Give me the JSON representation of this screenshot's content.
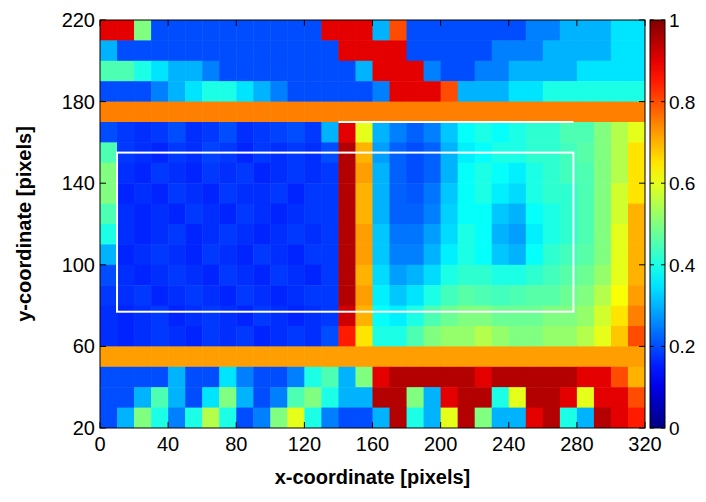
{
  "chart_data": {
    "type": "heatmap",
    "xlabel": "x-coordinate [pixels]",
    "ylabel": "y-coordinate [pixels]",
    "color": "jet",
    "xlim": [
      0,
      320
    ],
    "ylim": [
      20,
      220
    ],
    "xticks": [
      0,
      40,
      80,
      120,
      160,
      200,
      240,
      280,
      320
    ],
    "yticks": [
      20,
      60,
      100,
      140,
      180,
      220
    ],
    "zlim": [
      0,
      1
    ],
    "zticks": [
      0,
      0.2,
      0.4,
      0.6,
      0.8,
      1
    ],
    "x": [
      5,
      15,
      25,
      35,
      45,
      55,
      65,
      75,
      85,
      95,
      105,
      115,
      125,
      135,
      145,
      155,
      165,
      175,
      185,
      195,
      205,
      215,
      225,
      235,
      245,
      255,
      265,
      275,
      285,
      295,
      305,
      315
    ],
    "y": [
      215,
      205,
      195,
      185,
      175,
      165,
      155,
      145,
      135,
      125,
      115,
      105,
      95,
      85,
      75,
      65,
      55,
      45,
      35,
      25
    ],
    "z": [
      [
        0.9,
        0.9,
        0.5,
        0.2,
        0.2,
        0.2,
        0.2,
        0.2,
        0.2,
        0.2,
        0.2,
        0.2,
        0.2,
        0.9,
        0.9,
        0.9,
        0.3,
        0.8,
        0.2,
        0.2,
        0.2,
        0.2,
        0.2,
        0.2,
        0.2,
        0.25,
        0.25,
        0.3,
        0.3,
        0.3,
        0.35,
        0.35
      ],
      [
        0.3,
        0.2,
        0.2,
        0.2,
        0.2,
        0.2,
        0.2,
        0.2,
        0.2,
        0.2,
        0.2,
        0.2,
        0.2,
        0.2,
        0.9,
        0.9,
        0.9,
        0.9,
        0.2,
        0.2,
        0.2,
        0.2,
        0.2,
        0.25,
        0.25,
        0.25,
        0.3,
        0.3,
        0.3,
        0.3,
        0.35,
        0.35
      ],
      [
        0.45,
        0.45,
        0.4,
        0.35,
        0.3,
        0.3,
        0.25,
        0.2,
        0.2,
        0.2,
        0.2,
        0.2,
        0.2,
        0.2,
        0.2,
        0.3,
        0.9,
        0.9,
        0.9,
        0.25,
        0.2,
        0.2,
        0.25,
        0.25,
        0.3,
        0.3,
        0.3,
        0.3,
        0.35,
        0.35,
        0.35,
        0.35
      ],
      [
        0.2,
        0.2,
        0.2,
        0.25,
        0.3,
        0.35,
        0.4,
        0.4,
        0.35,
        0.3,
        0.25,
        0.2,
        0.2,
        0.2,
        0.2,
        0.2,
        0.25,
        0.9,
        0.9,
        0.9,
        0.8,
        0.3,
        0.3,
        0.3,
        0.35,
        0.35,
        0.4,
        0.4,
        0.4,
        0.4,
        0.4,
        0.4
      ],
      [
        0.75,
        0.75,
        0.75,
        0.75,
        0.75,
        0.75,
        0.75,
        0.75,
        0.75,
        0.75,
        0.75,
        0.75,
        0.75,
        0.75,
        0.75,
        0.75,
        0.75,
        0.75,
        0.75,
        0.75,
        0.75,
        0.75,
        0.75,
        0.75,
        0.75,
        0.75,
        0.75,
        0.75,
        0.75,
        0.75,
        0.75,
        0.75
      ],
      [
        0.2,
        0.18,
        0.17,
        0.18,
        0.2,
        0.17,
        0.18,
        0.2,
        0.17,
        0.18,
        0.19,
        0.2,
        0.18,
        0.3,
        0.9,
        0.6,
        0.3,
        0.25,
        0.22,
        0.25,
        0.32,
        0.38,
        0.4,
        0.38,
        0.4,
        0.42,
        0.42,
        0.45,
        0.45,
        0.5,
        0.55,
        0.6
      ],
      [
        0.45,
        0.18,
        0.17,
        0.16,
        0.18,
        0.17,
        0.19,
        0.18,
        0.16,
        0.18,
        0.17,
        0.18,
        0.17,
        0.2,
        0.95,
        0.7,
        0.28,
        0.22,
        0.2,
        0.22,
        0.3,
        0.36,
        0.38,
        0.4,
        0.4,
        0.42,
        0.42,
        0.44,
        0.46,
        0.5,
        0.55,
        0.65
      ],
      [
        0.5,
        0.17,
        0.16,
        0.18,
        0.17,
        0.16,
        0.18,
        0.17,
        0.18,
        0.16,
        0.17,
        0.18,
        0.17,
        0.18,
        0.95,
        0.72,
        0.3,
        0.22,
        0.2,
        0.22,
        0.3,
        0.38,
        0.4,
        0.38,
        0.36,
        0.4,
        0.42,
        0.44,
        0.45,
        0.5,
        0.55,
        0.65
      ],
      [
        0.5,
        0.16,
        0.17,
        0.16,
        0.18,
        0.17,
        0.16,
        0.18,
        0.17,
        0.17,
        0.18,
        0.16,
        0.18,
        0.18,
        0.95,
        0.7,
        0.3,
        0.22,
        0.21,
        0.24,
        0.32,
        0.38,
        0.4,
        0.36,
        0.34,
        0.4,
        0.42,
        0.42,
        0.45,
        0.5,
        0.58,
        0.65
      ],
      [
        0.45,
        0.17,
        0.16,
        0.17,
        0.16,
        0.18,
        0.17,
        0.16,
        0.18,
        0.17,
        0.16,
        0.17,
        0.18,
        0.18,
        0.95,
        0.7,
        0.3,
        0.22,
        0.22,
        0.25,
        0.33,
        0.38,
        0.38,
        0.32,
        0.3,
        0.38,
        0.4,
        0.42,
        0.45,
        0.5,
        0.58,
        0.7
      ],
      [
        0.4,
        0.17,
        0.16,
        0.17,
        0.18,
        0.16,
        0.17,
        0.18,
        0.17,
        0.16,
        0.17,
        0.18,
        0.17,
        0.18,
        0.95,
        0.72,
        0.32,
        0.24,
        0.24,
        0.28,
        0.34,
        0.4,
        0.38,
        0.3,
        0.28,
        0.36,
        0.4,
        0.42,
        0.45,
        0.5,
        0.6,
        0.7
      ],
      [
        0.3,
        0.16,
        0.17,
        0.18,
        0.17,
        0.16,
        0.18,
        0.17,
        0.16,
        0.18,
        0.17,
        0.16,
        0.18,
        0.18,
        0.95,
        0.72,
        0.32,
        0.25,
        0.25,
        0.3,
        0.36,
        0.4,
        0.38,
        0.32,
        0.3,
        0.38,
        0.42,
        0.44,
        0.46,
        0.5,
        0.6,
        0.7
      ],
      [
        0.2,
        0.17,
        0.16,
        0.17,
        0.18,
        0.17,
        0.16,
        0.18,
        0.17,
        0.16,
        0.18,
        0.17,
        0.16,
        0.18,
        0.95,
        0.7,
        0.34,
        0.28,
        0.3,
        0.34,
        0.4,
        0.42,
        0.42,
        0.4,
        0.4,
        0.42,
        0.44,
        0.46,
        0.48,
        0.52,
        0.6,
        0.7
      ],
      [
        0.18,
        0.17,
        0.18,
        0.16,
        0.17,
        0.18,
        0.17,
        0.16,
        0.18,
        0.17,
        0.16,
        0.17,
        0.18,
        0.18,
        0.95,
        0.72,
        0.36,
        0.32,
        0.35,
        0.4,
        0.44,
        0.46,
        0.45,
        0.44,
        0.45,
        0.46,
        0.46,
        0.48,
        0.5,
        0.55,
        0.62,
        0.72
      ],
      [
        0.17,
        0.16,
        0.17,
        0.18,
        0.16,
        0.17,
        0.18,
        0.17,
        0.16,
        0.18,
        0.17,
        0.16,
        0.17,
        0.18,
        0.92,
        0.7,
        0.38,
        0.36,
        0.4,
        0.45,
        0.48,
        0.5,
        0.5,
        0.48,
        0.48,
        0.48,
        0.5,
        0.5,
        0.52,
        0.58,
        0.65,
        0.75
      ],
      [
        0.17,
        0.16,
        0.17,
        0.18,
        0.17,
        0.16,
        0.18,
        0.17,
        0.18,
        0.16,
        0.17,
        0.18,
        0.17,
        0.2,
        0.85,
        0.65,
        0.4,
        0.4,
        0.45,
        0.5,
        0.52,
        0.52,
        0.55,
        0.52,
        0.5,
        0.5,
        0.52,
        0.52,
        0.55,
        0.6,
        0.68,
        0.8
      ],
      [
        0.72,
        0.72,
        0.72,
        0.72,
        0.72,
        0.72,
        0.72,
        0.72,
        0.72,
        0.72,
        0.72,
        0.72,
        0.72,
        0.72,
        0.72,
        0.72,
        0.72,
        0.72,
        0.72,
        0.72,
        0.72,
        0.72,
        0.72,
        0.72,
        0.72,
        0.72,
        0.72,
        0.72,
        0.72,
        0.72,
        0.72,
        0.72
      ],
      [
        0.2,
        0.2,
        0.2,
        0.2,
        0.3,
        0.2,
        0.2,
        0.35,
        0.25,
        0.2,
        0.2,
        0.25,
        0.4,
        0.45,
        0.3,
        0.5,
        0.9,
        0.95,
        0.95,
        0.95,
        0.95,
        0.95,
        0.9,
        0.95,
        0.95,
        0.95,
        0.95,
        0.95,
        0.9,
        0.9,
        0.8,
        0.7
      ],
      [
        0.2,
        0.2,
        0.3,
        0.45,
        0.3,
        0.2,
        0.35,
        0.5,
        0.3,
        0.2,
        0.25,
        0.45,
        0.5,
        0.4,
        0.3,
        0.3,
        0.95,
        0.95,
        0.5,
        0.3,
        0.9,
        0.95,
        0.95,
        0.4,
        0.6,
        0.95,
        0.95,
        0.9,
        0.6,
        0.9,
        0.9,
        0.8
      ],
      [
        0.2,
        0.3,
        0.5,
        0.4,
        0.25,
        0.4,
        0.55,
        0.4,
        0.2,
        0.25,
        0.5,
        0.6,
        0.4,
        0.25,
        0.2,
        0.2,
        0.3,
        0.95,
        0.4,
        0.3,
        0.6,
        0.95,
        0.5,
        0.3,
        0.3,
        0.9,
        0.95,
        0.4,
        0.3,
        0.95,
        0.9,
        0.85
      ]
    ],
    "boxes": [
      {
        "x": [
          10,
          278
        ],
        "y": [
          77,
          155
        ]
      }
    ],
    "lines": [
      {
        "x": [
          140,
          278
        ],
        "y": [
          170,
          170
        ]
      }
    ]
  }
}
